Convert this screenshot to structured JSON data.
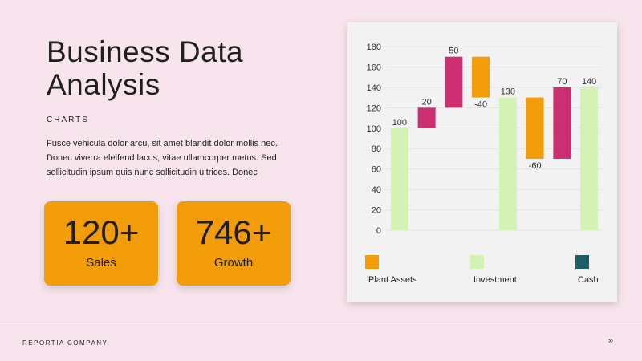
{
  "slide": {
    "title": "Business Data Analysis",
    "kicker": "CHARTS",
    "body": "Fusce vehicula dolor arcu, sit amet blandit dolor mollis nec. Donec viverra eleifend lacus, vitae ullamcorper metus. Sed sollicitudin ipsum quis nunc sollicitudin ultrices. Donec"
  },
  "stats": [
    {
      "value": "120+",
      "label": "Sales"
    },
    {
      "value": "746+",
      "label": "Growth"
    }
  ],
  "colors": {
    "accent": "#f39c0a",
    "magenta": "#cc2e72",
    "total_green": "#d4f2b4",
    "cash_teal": "#1e5c68",
    "background": "#f8e4ec"
  },
  "chart_data": {
    "type": "waterfall",
    "ylim": [
      0,
      180
    ],
    "yticks": [
      0,
      20,
      40,
      60,
      80,
      100,
      120,
      140,
      160,
      180
    ],
    "grid": true,
    "bars": [
      {
        "label": "100",
        "kind": "total",
        "from": 0,
        "to": 100
      },
      {
        "label": "20",
        "kind": "increase",
        "from": 100,
        "to": 120
      },
      {
        "label": "50",
        "kind": "increase",
        "from": 120,
        "to": 170
      },
      {
        "label": "-40",
        "kind": "decrease",
        "from": 170,
        "to": 130
      },
      {
        "label": "130",
        "kind": "total",
        "from": 0,
        "to": 130
      },
      {
        "label": "-60",
        "kind": "decrease",
        "from": 130,
        "to": 70
      },
      {
        "label": "70",
        "kind": "increase",
        "from": 70,
        "to": 140
      },
      {
        "label": "140",
        "kind": "total",
        "from": 0,
        "to": 140
      }
    ],
    "legend": [
      {
        "name": "Plant Assets",
        "color": "#f39c0a"
      },
      {
        "name": "Investment",
        "color": "#d4f2b4"
      },
      {
        "name": "Cash",
        "color": "#1e5c68"
      }
    ],
    "legend_position": "bottom"
  },
  "footer": {
    "company": "REPORTIA COMPANY",
    "next": "»"
  }
}
